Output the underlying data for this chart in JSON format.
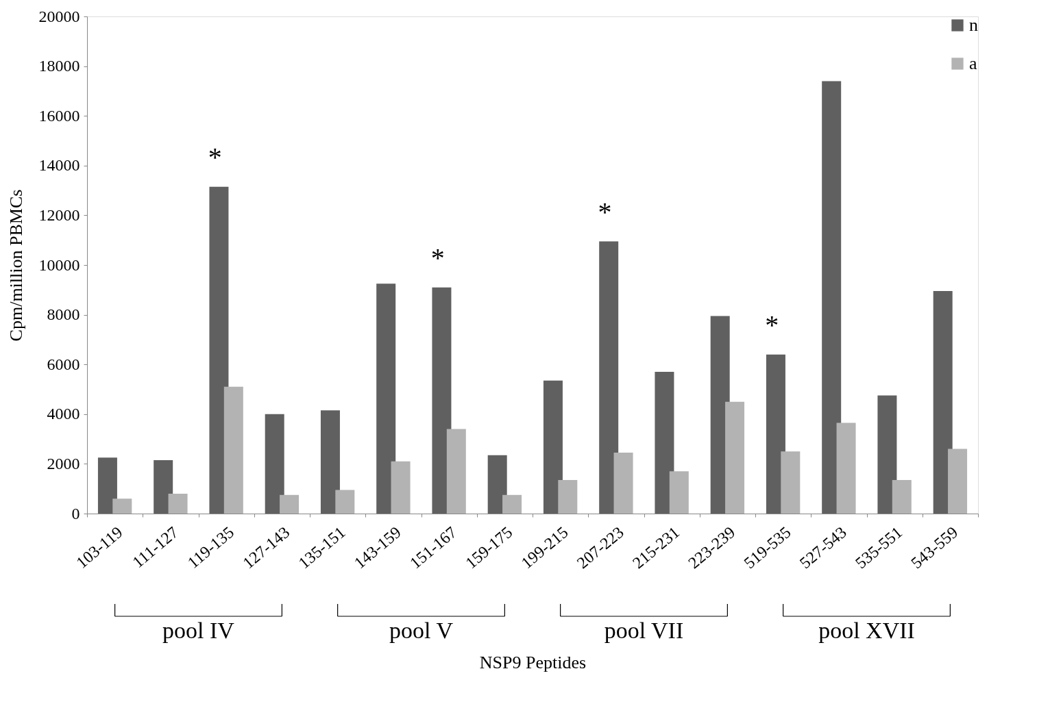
{
  "chart_data": {
    "type": "bar",
    "xlabel": "NSP9 Peptides",
    "ylabel": "Cpm/million PBMCs",
    "categories": [
      "103-119",
      "111-127",
      "119-135",
      "127-143",
      "135-151",
      "143-159",
      "151-167",
      "159-175",
      "199-215",
      "207-223",
      "215-231",
      "223-239",
      "519-535",
      "527-543",
      "535-551",
      "543-559"
    ],
    "series": [
      {
        "name": "n",
        "color": "#606060",
        "values": [
          2250,
          2150,
          13150,
          4000,
          4150,
          9250,
          9100,
          2350,
          5350,
          10950,
          5700,
          7950,
          6400,
          17400,
          4750,
          8950
        ]
      },
      {
        "name": "a",
        "color": "#b3b3b3",
        "values": [
          600,
          800,
          5100,
          750,
          950,
          2100,
          3400,
          750,
          1350,
          2450,
          1700,
          4500,
          2500,
          3650,
          1350,
          2600
        ]
      }
    ],
    "ylim": [
      0,
      20000
    ],
    "yticks": [
      0,
      2000,
      4000,
      6000,
      8000,
      10000,
      12000,
      14000,
      16000,
      18000,
      20000
    ],
    "grid": false,
    "legend": "top right",
    "annotations": [
      {
        "text": "*",
        "x": "119-135",
        "y": 13150
      },
      {
        "text": "*",
        "x": "151-167",
        "y": 9100
      },
      {
        "text": "*",
        "x": "207-223",
        "y": 10950
      },
      {
        "text": "*",
        "x": "519-535",
        "y": 6400
      },
      "pool IV",
      "pool V",
      "pool VII",
      "pool XVII"
    ]
  }
}
